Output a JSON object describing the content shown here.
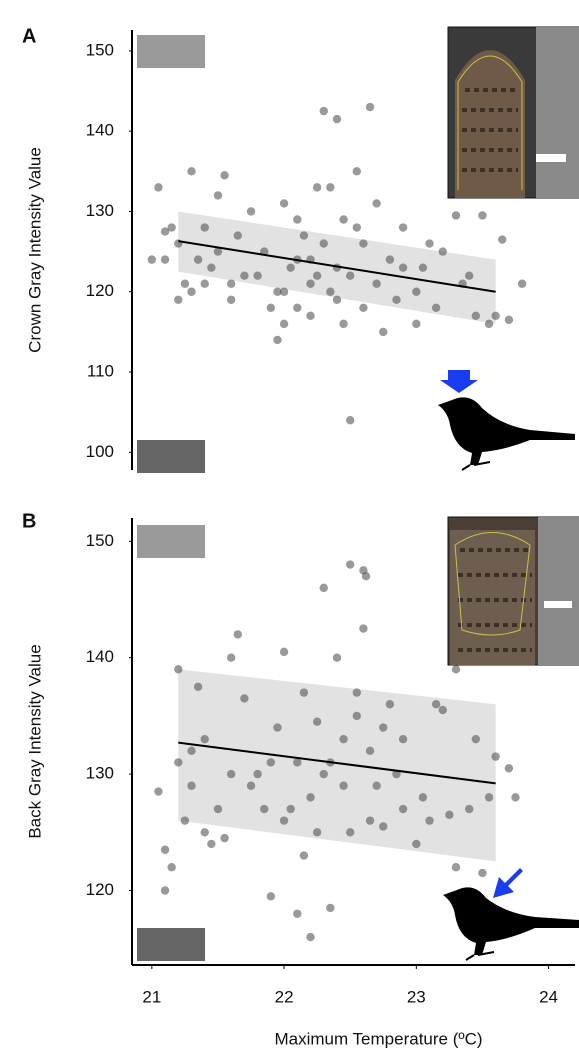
{
  "chart_data": [
    {
      "type": "scatter",
      "panel_label": "A",
      "ylabel": "Crown Gray Intensity Value",
      "point_color": "#555555",
      "xlim": [
        20.85,
        24.2
      ],
      "ylim": [
        97.8,
        152.6
      ],
      "yticks": [
        100,
        110,
        120,
        130,
        140,
        150
      ],
      "x": [
        21.05,
        21.0,
        21.1,
        21.1,
        21.15,
        21.2,
        21.2,
        21.25,
        21.3,
        21.3,
        21.35,
        21.4,
        21.4,
        21.45,
        21.5,
        21.55,
        21.5,
        21.6,
        21.65,
        21.7,
        21.8,
        21.85,
        21.9,
        21.95,
        22.0,
        22.0,
        22.05,
        22.1,
        22.1,
        22.15,
        22.2,
        22.2,
        22.25,
        22.3,
        22.35,
        22.4,
        22.4,
        22.45,
        22.45,
        22.5,
        22.5,
        22.55,
        22.6,
        22.6,
        22.65,
        22.7,
        22.75,
        22.8,
        22.85,
        22.9,
        23.0,
        23.05,
        23.1,
        23.15,
        23.2,
        23.3,
        23.35,
        23.4,
        23.45,
        23.5,
        23.55,
        23.6,
        23.65,
        23.7,
        23.8,
        22.3,
        22.35,
        22.2,
        22.0,
        21.75,
        22.55,
        22.7,
        23.0,
        22.9,
        21.6,
        22.1,
        22.4,
        21.95,
        22.25
      ],
      "y": [
        133,
        124,
        124,
        127.5,
        128,
        126,
        119,
        121,
        120,
        135,
        124,
        128,
        121,
        123,
        132,
        134.5,
        125,
        119,
        127,
        122,
        122,
        125,
        118,
        114,
        120,
        131,
        123,
        124,
        118,
        127,
        117,
        121,
        133,
        142.5,
        120,
        141.5,
        119,
        116,
        129,
        122,
        104,
        135,
        126,
        118,
        143,
        121,
        115,
        124,
        119,
        128,
        120,
        123,
        126,
        118,
        125,
        129.5,
        121,
        122,
        117,
        129.5,
        116,
        117,
        126.5,
        116.5,
        121,
        126,
        133,
        124,
        116,
        130,
        128,
        131,
        116,
        123,
        121,
        129,
        123,
        120,
        122
      ],
      "fit": {
        "x": [
          21.2,
          23.6
        ],
        "y": [
          126.3,
          120.0
        ]
      },
      "band": {
        "x": [
          21.2,
          23.6
        ],
        "lower": [
          122.5,
          116.0
        ],
        "upper": [
          130.0,
          124.0
        ]
      }
    },
    {
      "type": "scatter",
      "panel_label": "B",
      "ylabel": "Back Gray Intensity Value",
      "xlabel": "Maximum Temperature (ºC)",
      "point_color": "#555555",
      "xlim": [
        20.85,
        24.2
      ],
      "ylim": [
        113.6,
        152.0
      ],
      "xticks": [
        21,
        22,
        23,
        24
      ],
      "yticks": [
        120,
        130,
        140,
        150
      ],
      "x": [
        21.05,
        21.1,
        21.1,
        21.15,
        21.2,
        21.2,
        21.25,
        21.3,
        21.35,
        21.4,
        21.4,
        21.5,
        21.55,
        21.6,
        21.65,
        21.7,
        21.75,
        21.8,
        21.85,
        21.9,
        21.95,
        22.0,
        22.0,
        22.1,
        22.1,
        22.15,
        22.2,
        22.25,
        22.3,
        22.3,
        22.35,
        22.4,
        22.45,
        22.5,
        22.5,
        22.55,
        22.6,
        22.62,
        22.6,
        22.65,
        22.7,
        22.75,
        22.8,
        22.85,
        22.9,
        23.0,
        23.1,
        23.15,
        23.2,
        23.3,
        23.3,
        23.4,
        23.45,
        23.5,
        23.55,
        23.6,
        23.7,
        23.75,
        22.2,
        21.45,
        21.9,
        22.05,
        22.35,
        22.45,
        22.55,
        22.75,
        23.05,
        21.3,
        22.15,
        22.25,
        21.6,
        22.9,
        23.25,
        22.65
      ],
      "y": [
        128.5,
        123.5,
        120,
        122,
        139,
        131,
        126,
        129,
        137.5,
        133,
        125,
        127,
        124.5,
        140,
        142,
        136.5,
        129,
        130,
        127,
        119.5,
        134,
        140.5,
        126,
        131,
        118,
        123,
        128,
        134.5,
        146,
        130,
        118.5,
        140,
        133,
        125,
        148,
        137,
        147.5,
        147,
        142.5,
        132,
        129,
        125.5,
        136,
        130,
        127,
        124,
        126,
        136,
        135.5,
        139,
        122,
        127,
        133,
        121.5,
        128,
        131.5,
        130.5,
        128,
        116,
        124,
        131,
        127,
        131,
        129,
        135,
        134,
        128,
        132,
        137,
        125,
        130,
        133,
        126.5,
        126
      ],
      "fit": {
        "x": [
          21.2,
          23.6
        ],
        "y": [
          132.7,
          129.2
        ]
      },
      "band": {
        "x": [
          21.2,
          23.6
        ],
        "lower": [
          126.0,
          122.5
        ],
        "upper": [
          139.0,
          136.0
        ]
      }
    }
  ]
}
